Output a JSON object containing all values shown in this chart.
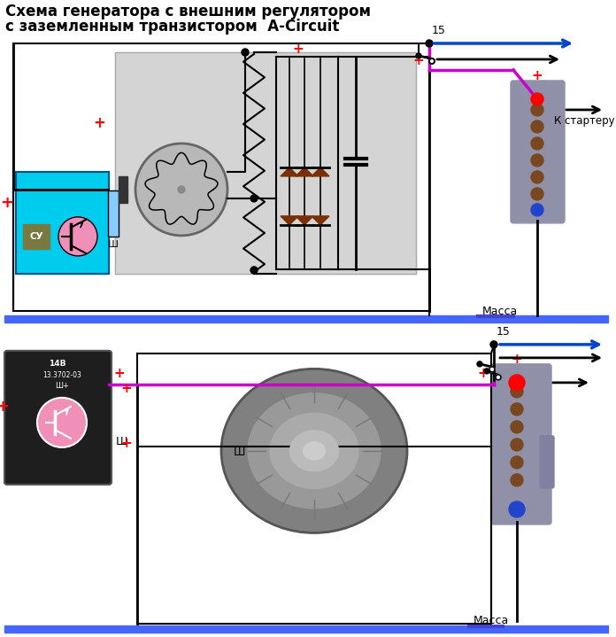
{
  "title_line1": "Схема генератора с внешним регулятором",
  "title_line2": "с заземленным транзистором  A-Circuit",
  "title_fontsize": 12,
  "bg_color": "#ffffff",
  "cyan_box_color": "#00ccee",
  "pink_circle_color": "#f090b8",
  "olive_box_color": "#787840",
  "gray_box_color": "#9090a8",
  "magenta_wire": "#cc00cc",
  "blue_arrow_color": "#0044cc",
  "diode_color": "#7a3000",
  "ground_bar_color": "#4466ff",
  "label_15": "15",
  "label_massa": "Масса",
  "label_starter": "К стартеру",
  "label_sh": "Ш",
  "label_su": "СУ"
}
